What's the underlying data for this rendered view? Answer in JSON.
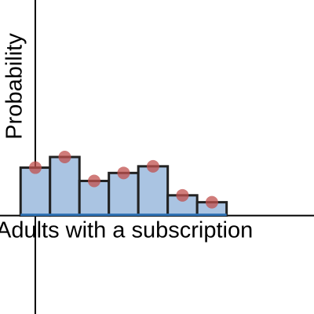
{
  "chart_data": {
    "type": "histogram",
    "x_label": "Adults with a subscription",
    "y_label": "Probability",
    "x": [
      0,
      1,
      2,
      3,
      4,
      5,
      6
    ],
    "values": [
      0.18,
      0.22,
      0.13,
      0.16,
      0.185,
      0.076,
      0.05
    ],
    "bar_width": 1,
    "color": "#aac4e2",
    "edge_color": "#222222",
    "point_color": "#c0504d",
    "xlim": [
      -1.2,
      9.47
    ],
    "ylim": [
      -0.37,
      0.81
    ]
  }
}
